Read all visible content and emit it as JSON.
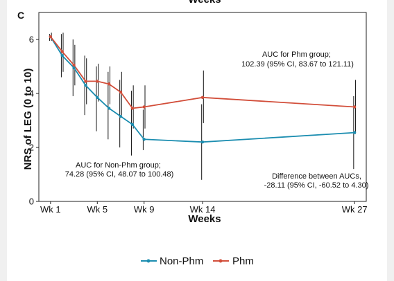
{
  "chart_data": {
    "type": "line",
    "panel_label": "C",
    "top_clipped_label": "Weeks",
    "xlabel": "Weeks",
    "ylabel": "NRS of LEG (0 to 10)",
    "ylim": [
      0,
      7
    ],
    "yticks": [
      0,
      2,
      4,
      6
    ],
    "x_ticks": [
      {
        "week": 1,
        "label": "Wk 1"
      },
      {
        "week": 5,
        "label": "Wk 5"
      },
      {
        "week": 9,
        "label": "Wk 9"
      },
      {
        "week": 14,
        "label": "Wk 14"
      },
      {
        "week": 27,
        "label": "Wk 27"
      }
    ],
    "series": [
      {
        "name": "Non-Phm",
        "color": "#1b8db0",
        "points": [
          {
            "x": 1,
            "y": 6.1,
            "lo": 5.95,
            "hi": 6.2
          },
          {
            "x": 2,
            "y": 5.4,
            "lo": 4.6,
            "hi": 6.2
          },
          {
            "x": 3,
            "y": 4.95,
            "lo": 3.9,
            "hi": 6.0
          },
          {
            "x": 4,
            "y": 4.3,
            "lo": 3.2,
            "hi": 5.4
          },
          {
            "x": 5,
            "y": 3.85,
            "lo": 2.6,
            "hi": 5.0
          },
          {
            "x": 6,
            "y": 3.45,
            "lo": 2.3,
            "hi": 4.8
          },
          {
            "x": 7,
            "y": 3.15,
            "lo": 2.0,
            "hi": 4.5
          },
          {
            "x": 8,
            "y": 2.85,
            "lo": 1.7,
            "hi": 4.1
          },
          {
            "x": 9,
            "y": 2.3,
            "lo": 1.9,
            "hi": 3.4
          },
          {
            "x": 14,
            "y": 2.2,
            "lo": 0.8,
            "hi": 3.6
          },
          {
            "x": 27,
            "y": 2.55,
            "lo": 1.2,
            "hi": 3.9
          }
        ]
      },
      {
        "name": "Phm",
        "color": "#d24e3a",
        "points": [
          {
            "x": 1,
            "y": 6.1,
            "lo": 5.95,
            "hi": 6.25
          },
          {
            "x": 2,
            "y": 5.55,
            "lo": 4.8,
            "hi": 6.25
          },
          {
            "x": 3,
            "y": 5.05,
            "lo": 4.3,
            "hi": 5.8
          },
          {
            "x": 4,
            "y": 4.45,
            "lo": 3.6,
            "hi": 5.3
          },
          {
            "x": 5,
            "y": 4.45,
            "lo": 3.7,
            "hi": 5.1
          },
          {
            "x": 6,
            "y": 4.35,
            "lo": 3.6,
            "hi": 5.0
          },
          {
            "x": 7,
            "y": 4.05,
            "lo": 3.2,
            "hi": 4.8
          },
          {
            "x": 8,
            "y": 3.45,
            "lo": 2.7,
            "hi": 4.3
          },
          {
            "x": 9,
            "y": 3.5,
            "lo": 2.7,
            "hi": 4.3
          },
          {
            "x": 14,
            "y": 3.85,
            "lo": 2.9,
            "hi": 4.85
          },
          {
            "x": 27,
            "y": 3.5,
            "lo": 2.5,
            "hi": 4.5
          }
        ]
      }
    ],
    "annotations": [
      {
        "id": "phm-auc",
        "lines": [
          "AUC for Phm group;",
          "102.39 (95% CI, 83.67 to 121.11)"
        ]
      },
      {
        "id": "nonphm-auc",
        "lines": [
          "AUC for Non-Phm group;",
          "74.28 (95% CI, 48.07 to 100.48)"
        ]
      },
      {
        "id": "diff-auc",
        "lines": [
          "Difference between AUCs,",
          "-28.11 (95% CI, -60.52 to 4.30)"
        ]
      }
    ],
    "legend": {
      "position": "bottom",
      "items": [
        "Non-Phm",
        "Phm"
      ]
    }
  }
}
